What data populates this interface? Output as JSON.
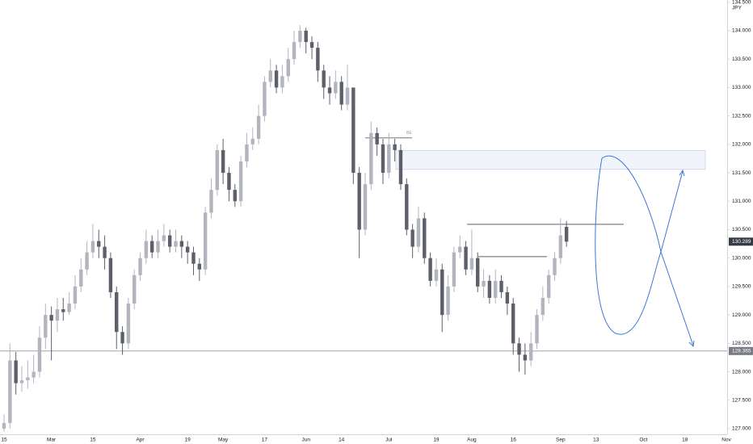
{
  "chart_data": {
    "type": "candlestick",
    "unit": "JPY",
    "categories": [
      "15",
      null,
      null,
      null,
      null,
      null,
      null,
      null,
      "Mar",
      null,
      null,
      null,
      null,
      null,
      null,
      "15",
      null,
      null,
      null,
      null,
      null,
      null,
      null,
      "Apr",
      null,
      null,
      null,
      null,
      null,
      null,
      null,
      "19",
      null,
      null,
      null,
      null,
      null,
      "May",
      null,
      null,
      null,
      null,
      null,
      null,
      "17",
      null,
      null,
      null,
      null,
      null,
      null,
      "Jun",
      null,
      null,
      null,
      null,
      null,
      "14",
      null,
      null,
      null,
      null,
      null,
      null,
      null,
      "Jul",
      null,
      null,
      null,
      null,
      null,
      null,
      null,
      "19",
      null,
      null,
      null,
      null,
      null,
      "Aug",
      null,
      null,
      null,
      null,
      null,
      null,
      "16",
      null,
      null,
      null,
      null,
      null,
      null,
      null,
      "Sep",
      null,
      null,
      null,
      null,
      null,
      "13",
      null,
      null,
      null,
      null,
      null,
      null,
      null,
      "Oct",
      null,
      null,
      null,
      null,
      null,
      null,
      "18",
      null,
      null,
      null,
      null,
      null,
      null,
      "Nov"
    ],
    "open": [
      127.0,
      127.1,
      128.2,
      127.8,
      127.85,
      127.9,
      128.0,
      128.6,
      129.0,
      128.9,
      129.1,
      129.05,
      129.2,
      129.5,
      129.8,
      130.1,
      130.3,
      130.2,
      130.0,
      129.4,
      128.7,
      128.5,
      129.2,
      129.7,
      130.0,
      130.3,
      130.1,
      130.3,
      130.4,
      130.2,
      130.3,
      130.2,
      130.1,
      129.9,
      129.8,
      130.8,
      131.2,
      131.9,
      131.5,
      131.2,
      131.0,
      131.7,
      132.0,
      132.1,
      132.5,
      133.1,
      133.3,
      133.0,
      133.2,
      133.5,
      133.8,
      134.0,
      133.8,
      133.7,
      133.3,
      133.0,
      132.9,
      133.1,
      132.7,
      133.0,
      131.5,
      130.5,
      131.3,
      132.2,
      132.0,
      131.5,
      132.0,
      131.9,
      131.3,
      130.5,
      130.2,
      130.7,
      130.0,
      129.6,
      129.8,
      129.0,
      129.5,
      130.1,
      130.2,
      129.8,
      130.0,
      129.5,
      129.6,
      129.3,
      129.6,
      129.4,
      129.2,
      128.5,
      128.3,
      128.2,
      128.5,
      129.0,
      129.3,
      129.7,
      130.0,
      130.55,
      null,
      null,
      null,
      null,
      null,
      null,
      null,
      null,
      null,
      null,
      null,
      null,
      null,
      null,
      null,
      null,
      null,
      null,
      null,
      null,
      null,
      null,
      null,
      null,
      null,
      null,
      null
    ],
    "high": [
      127.25,
      128.5,
      128.35,
      128.1,
      128.2,
      128.3,
      128.8,
      129.2,
      129.15,
      129.3,
      129.3,
      129.4,
      129.7,
      130.0,
      130.3,
      130.6,
      130.5,
      130.4,
      130.1,
      129.5,
      128.8,
      129.3,
      129.8,
      130.1,
      130.5,
      130.4,
      130.5,
      130.6,
      130.5,
      130.5,
      130.4,
      130.3,
      130.2,
      130.0,
      130.9,
      131.4,
      132.0,
      132.1,
      131.6,
      131.3,
      131.8,
      132.2,
      132.3,
      132.7,
      133.2,
      133.5,
      133.4,
      133.4,
      133.7,
      134.0,
      134.1,
      134.05,
      133.9,
      133.8,
      133.4,
      133.2,
      133.3,
      133.2,
      133.4,
      133.0,
      131.6,
      131.5,
      132.4,
      132.3,
      132.1,
      132.2,
      132.1,
      132.0,
      131.4,
      130.6,
      130.9,
      130.8,
      130.1,
      130.0,
      129.9,
      129.7,
      130.2,
      130.4,
      130.3,
      130.5,
      130.1,
      129.8,
      129.7,
      129.8,
      129.7,
      129.5,
      129.3,
      128.6,
      128.5,
      128.7,
      129.1,
      129.5,
      129.8,
      130.1,
      130.7,
      130.65,
      null,
      null,
      null,
      null,
      null,
      null,
      null,
      null,
      null,
      null,
      null,
      null,
      null,
      null,
      null,
      null,
      null,
      null,
      null,
      null,
      null,
      null,
      null,
      null,
      null,
      null,
      null
    ],
    "low": [
      126.95,
      127.0,
      127.6,
      127.65,
      127.7,
      127.8,
      127.9,
      128.4,
      128.2,
      128.7,
      128.9,
      129.0,
      129.1,
      129.4,
      129.7,
      130.0,
      130.0,
      129.8,
      129.3,
      128.4,
      128.3,
      128.4,
      129.1,
      129.6,
      129.9,
      130.0,
      130.0,
      130.2,
      130.1,
      130.1,
      130.0,
      129.9,
      129.7,
      129.6,
      129.7,
      130.7,
      131.1,
      131.3,
      131.0,
      130.9,
      130.9,
      131.6,
      131.9,
      132.0,
      132.4,
      133.0,
      132.9,
      132.9,
      133.1,
      133.4,
      133.7,
      133.6,
      133.5,
      133.1,
      132.8,
      132.7,
      132.8,
      132.6,
      132.6,
      131.3,
      130.0,
      130.4,
      131.2,
      131.8,
      131.3,
      131.4,
      131.7,
      131.2,
      130.4,
      130.0,
      130.1,
      129.9,
      129.5,
      129.5,
      128.7,
      128.9,
      129.4,
      130.0,
      129.7,
      129.7,
      129.4,
      129.3,
      129.2,
      129.2,
      129.3,
      129.0,
      128.3,
      128.0,
      127.95,
      128.1,
      128.4,
      128.9,
      129.2,
      129.6,
      129.9,
      130.2,
      null,
      null,
      null,
      null,
      null,
      null,
      null,
      null,
      null,
      null,
      null,
      null,
      null,
      null,
      null,
      null,
      null,
      null,
      null,
      null,
      null,
      null,
      null,
      null,
      null,
      null,
      null
    ],
    "close": [
      127.1,
      128.2,
      127.8,
      127.85,
      127.9,
      128.0,
      128.6,
      129.0,
      128.9,
      129.1,
      129.05,
      129.2,
      129.5,
      129.8,
      130.1,
      130.3,
      130.2,
      130.0,
      129.4,
      128.7,
      128.5,
      129.2,
      129.7,
      130.0,
      130.3,
      130.1,
      130.3,
      130.4,
      130.2,
      130.3,
      130.2,
      130.1,
      129.9,
      129.8,
      130.8,
      131.2,
      131.9,
      131.5,
      131.2,
      131.0,
      131.7,
      132.0,
      132.1,
      132.5,
      133.1,
      133.3,
      133.0,
      133.2,
      133.5,
      133.8,
      134.0,
      133.8,
      133.7,
      133.3,
      133.0,
      132.9,
      133.1,
      132.7,
      133.0,
      131.5,
      130.5,
      131.3,
      132.2,
      132.0,
      131.5,
      132.0,
      131.9,
      131.3,
      130.5,
      130.2,
      130.7,
      130.0,
      129.6,
      129.8,
      129.0,
      129.5,
      130.1,
      130.2,
      129.8,
      130.0,
      129.5,
      129.6,
      129.3,
      129.6,
      129.4,
      129.2,
      128.5,
      128.3,
      128.2,
      128.5,
      129.0,
      129.3,
      129.7,
      130.0,
      130.4,
      130.289,
      null,
      null,
      null,
      null,
      null,
      null,
      null,
      null,
      null,
      null,
      null,
      null,
      null,
      null,
      null,
      null,
      null,
      null,
      null,
      null,
      null,
      null,
      null,
      null,
      null,
      null,
      null
    ],
    "up_color": "#b2b5be",
    "down_color": "#5d606b",
    "ylim": [
      126.9,
      134.54
    ],
    "yticks": [
      {
        "value": 127.0,
        "label": "127.000"
      },
      {
        "value": 127.5,
        "label": "127.500"
      },
      {
        "value": 128.0,
        "label": "128.000"
      },
      {
        "value": 128.5,
        "label": "128.500"
      },
      {
        "value": 129.0,
        "label": "129.000"
      },
      {
        "value": 129.5,
        "label": "129.500"
      },
      {
        "value": 130.0,
        "label": "130.000"
      },
      {
        "value": 130.5,
        "label": "130.500"
      },
      {
        "value": 131.0,
        "label": "131.000"
      },
      {
        "value": 131.5,
        "label": "131.500"
      },
      {
        "value": 132.0,
        "label": "132.000"
      },
      {
        "value": 132.5,
        "label": "132.500"
      },
      {
        "value": 133.0,
        "label": "133.000"
      },
      {
        "value": 133.5,
        "label": "133.500"
      },
      {
        "value": 134.0,
        "label": "134.000"
      },
      {
        "value": 134.5,
        "label": "134.500"
      }
    ],
    "last_price": 130.289,
    "support_line": 128.365,
    "zone": [
      131.56,
      131.89
    ],
    "levels": [
      132.114,
      130.594,
      130.026
    ],
    "annotation": "BE"
  }
}
